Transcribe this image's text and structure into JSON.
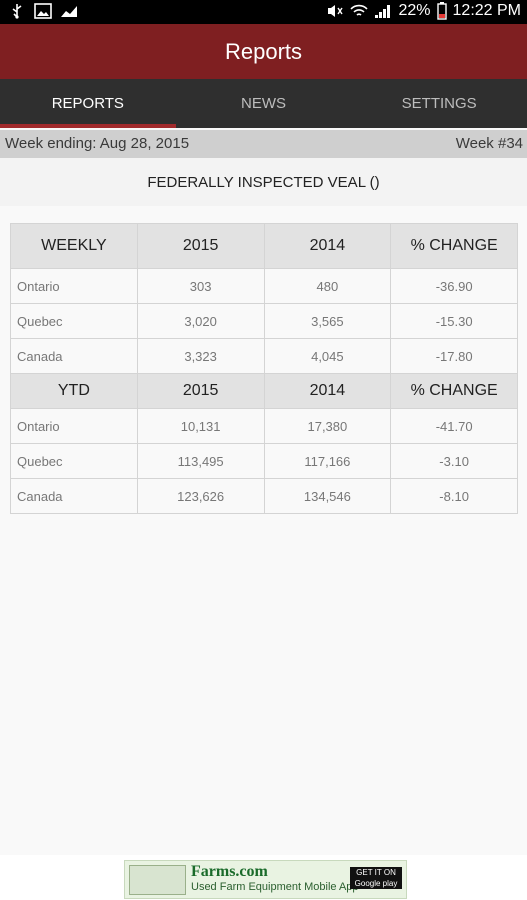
{
  "status_bar": {
    "battery": "22%",
    "time": "12:22 PM",
    "icons": [
      "usb-icon",
      "image-icon",
      "chart-icon",
      "mute-icon",
      "wifi-icon",
      "signal-icon",
      "battery-icon"
    ]
  },
  "app_bar": {
    "title": "Reports"
  },
  "tabs": [
    {
      "label": "REPORTS",
      "active": true
    },
    {
      "label": "NEWS",
      "active": false
    },
    {
      "label": "SETTINGS",
      "active": false
    }
  ],
  "week_bar": {
    "week_ending": "Week ending: Aug 28, 2015",
    "week_number": "Week #34"
  },
  "report_title": "FEDERALLY INSPECTED VEAL ()",
  "table": {
    "weekly_header": [
      "WEEKLY",
      "2015",
      "2014",
      "% CHANGE"
    ],
    "weekly_rows": [
      [
        "Ontario",
        "303",
        "480",
        "-36.90"
      ],
      [
        "Quebec",
        "3,020",
        "3,565",
        "-15.30"
      ],
      [
        "Canada",
        "3,323",
        "4,045",
        "-17.80"
      ]
    ],
    "ytd_header": [
      "YTD",
      "2015",
      "2014",
      "% CHANGE"
    ],
    "ytd_rows": [
      [
        "Ontario",
        "10,131",
        "17,380",
        "-41.70"
      ],
      [
        "Quebec",
        "113,495",
        "117,166",
        "-3.10"
      ],
      [
        "Canada",
        "123,626",
        "134,546",
        "-8.10"
      ]
    ]
  },
  "ad": {
    "brand": "Farms.com",
    "tagline": "Used Farm Equipment Mobile App",
    "store_badge": "GET IT ON Google play"
  }
}
